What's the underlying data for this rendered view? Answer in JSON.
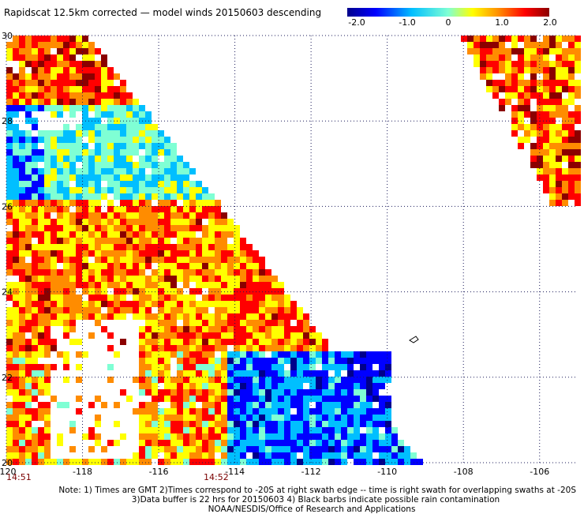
{
  "title": "Rapidscat 12.5km corrected — model winds 20150603 descending",
  "colorbar": {
    "labels": [
      "-2.0",
      "-1.0",
      "0",
      "1.0",
      "2.0"
    ],
    "colors": [
      "#00008b",
      "#0000ff",
      "#00bfff",
      "#7fffd4",
      "#ffff00",
      "#ff8c00",
      "#ff0000",
      "#8b0000"
    ]
  },
  "axes": {
    "lat_labels": [
      "20",
      "22",
      "24",
      "26",
      "28",
      "30"
    ],
    "lon_labels": [
      "-120",
      "-118",
      "-116",
      "-114",
      "-112",
      "-110",
      "-108",
      "-106"
    ],
    "lat_range": [
      20,
      30
    ],
    "lon_range": [
      -120,
      -105
    ],
    "grid": true
  },
  "time_labels": [
    "14:51",
    "14:52"
  ],
  "notes": [
    "Note: 1) Times are GMT 2)Times correspond to -20S at right swath edge -- time is right swath for overlapping swaths at -20S",
    "3)Data buffer is 22 hrs for 20150603 4) Black barbs indicate possible rain contamination",
    "NOAA/NESDIS/Office of Research and Applications"
  ]
}
